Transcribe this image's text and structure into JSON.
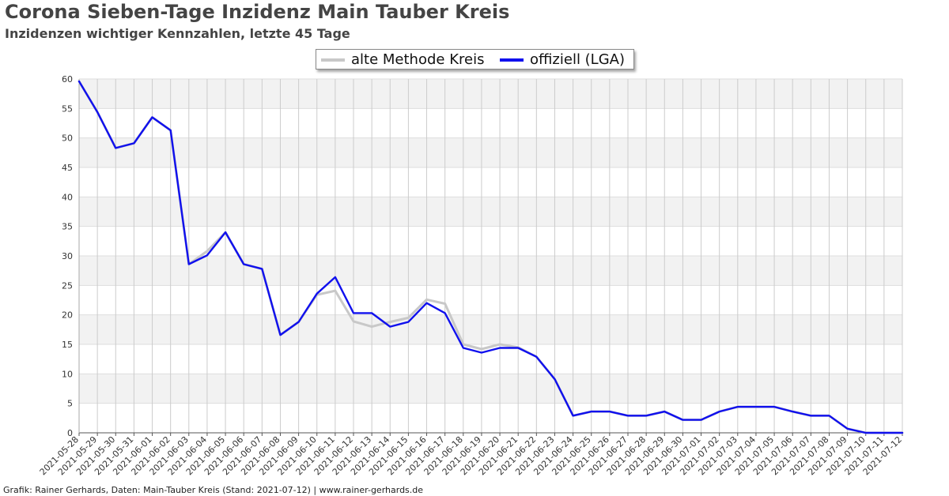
{
  "chart_data": {
    "type": "line",
    "title": "Corona Sieben-Tage Inzidenz Main Tauber Kreis",
    "subtitle": "Inzidenzen wichtiger Kennzahlen, letzte 45 Tage",
    "xlabel": "",
    "ylabel": "",
    "ylim": [
      0,
      60
    ],
    "yticks": [
      0,
      5,
      10,
      15,
      20,
      25,
      30,
      35,
      40,
      45,
      50,
      55,
      60
    ],
    "grid": true,
    "legend_position": "top-center",
    "categories": [
      "2021-05-28",
      "2021-05-29",
      "2021-05-30",
      "2021-05-31",
      "2021-06-01",
      "2021-06-02",
      "2021-06-03",
      "2021-06-04",
      "2021-06-05",
      "2021-06-06",
      "2021-06-07",
      "2021-06-08",
      "2021-06-09",
      "2021-06-10",
      "2021-06-11",
      "2021-06-12",
      "2021-06-13",
      "2021-06-14",
      "2021-06-15",
      "2021-06-16",
      "2021-06-17",
      "2021-06-18",
      "2021-06-19",
      "2021-06-20",
      "2021-06-21",
      "2021-06-22",
      "2021-06-23",
      "2021-06-24",
      "2021-06-25",
      "2021-06-26",
      "2021-06-27",
      "2021-06-28",
      "2021-06-29",
      "2021-06-30",
      "2021-07-01",
      "2021-07-02",
      "2021-07-03",
      "2021-07-04",
      "2021-07-05",
      "2021-07-06",
      "2021-07-07",
      "2021-07-08",
      "2021-07-09",
      "2021-07-10",
      "2021-07-11",
      "2021-07-12"
    ],
    "series": [
      {
        "name": "alte Methode Kreis",
        "color": "#c8c8c8",
        "values": [
          59.6,
          54.4,
          48.3,
          49.1,
          53.5,
          51.3,
          28.6,
          30.8,
          34.0,
          28.6,
          27.8,
          16.6,
          18.8,
          23.4,
          24.1,
          18.9,
          18.0,
          18.8,
          19.5,
          22.6,
          21.9,
          15.0,
          14.2,
          15.0,
          14.5,
          12.9,
          9.1,
          2.9,
          3.6,
          3.6,
          2.9,
          2.9,
          3.6,
          2.2,
          2.2,
          3.6,
          4.4,
          4.4,
          4.4,
          3.6,
          2.9,
          2.9,
          0.7,
          0.0,
          0.0,
          0.0
        ]
      },
      {
        "name": "offiziell (LGA)",
        "color": "#1010ee",
        "values": [
          59.6,
          54.4,
          48.3,
          49.1,
          53.5,
          51.3,
          28.6,
          30.1,
          34.0,
          28.6,
          27.8,
          16.6,
          18.8,
          23.6,
          26.4,
          20.3,
          20.3,
          18.0,
          18.8,
          22.0,
          20.3,
          14.4,
          13.6,
          14.4,
          14.4,
          12.9,
          9.1,
          2.9,
          3.6,
          3.6,
          2.9,
          2.9,
          3.6,
          2.2,
          2.2,
          3.6,
          4.4,
          4.4,
          4.4,
          3.6,
          2.9,
          2.9,
          0.7,
          0.0,
          0.0,
          0.0
        ]
      }
    ]
  },
  "footer": "Grafik: Rainer Gerhards, Daten: Main-Tauber Kreis (Stand: 2021-07-12) | www.rainer-gerhards.de"
}
